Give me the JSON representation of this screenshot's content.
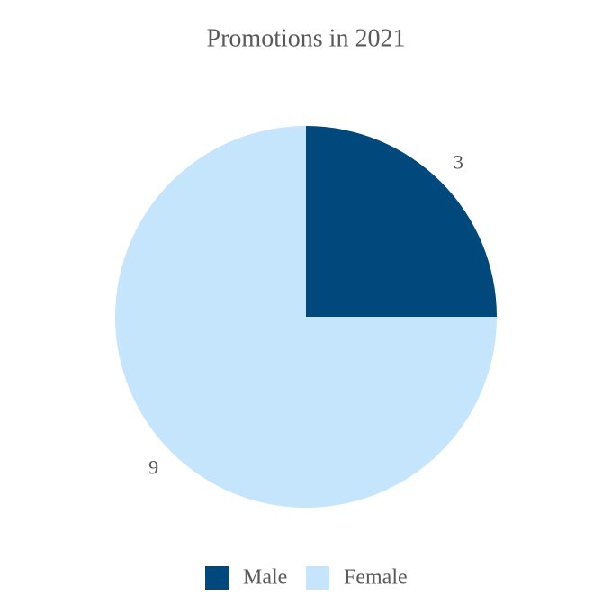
{
  "chart_data": {
    "type": "pie",
    "title": "Promotions in 2021",
    "categories": [
      "Male",
      "Female"
    ],
    "values": [
      3,
      9
    ],
    "colors": [
      "#01497c",
      "#c4e5fc"
    ]
  }
}
